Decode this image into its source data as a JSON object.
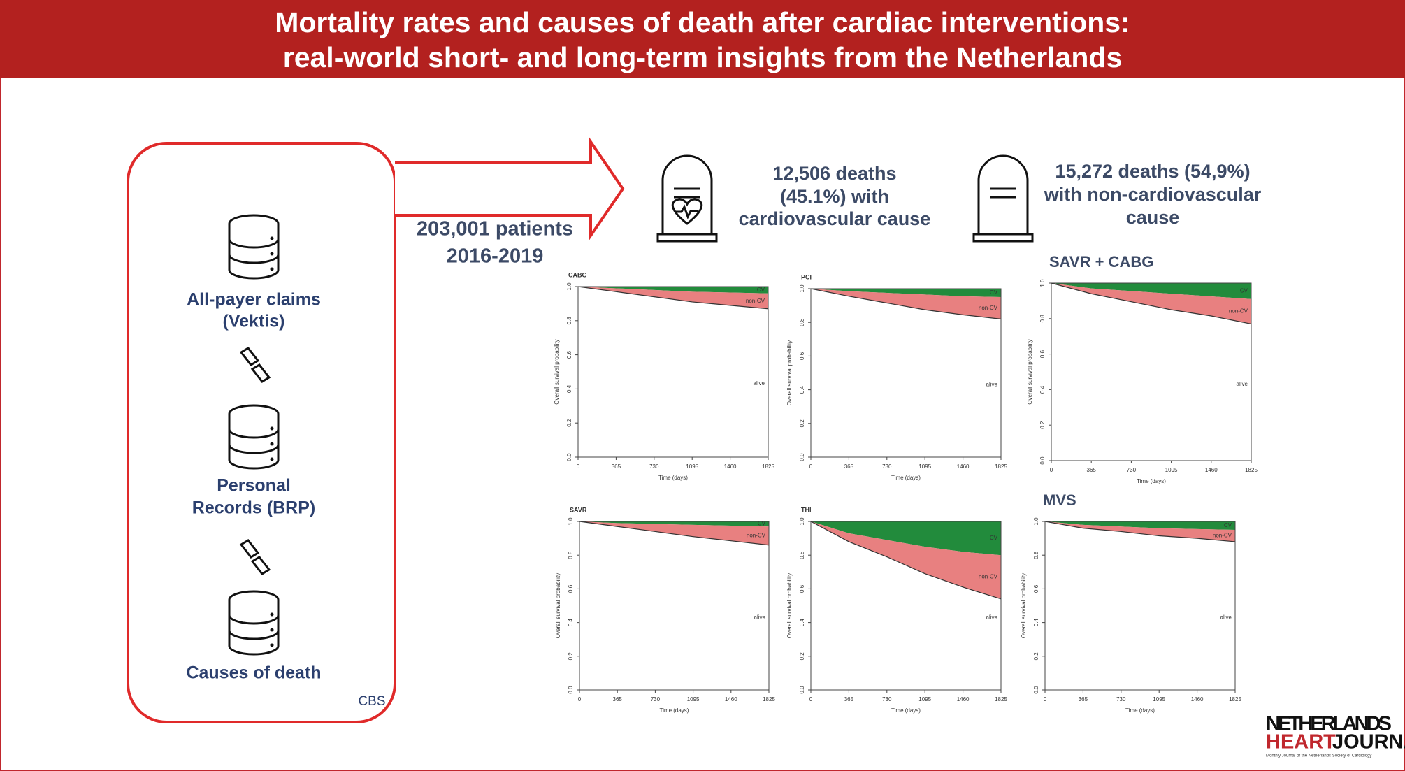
{
  "header": {
    "title_lines": [
      "Mortality rates and causes of death after cardiac interventions:",
      "real-world short- and long-term insights from the Netherlands"
    ]
  },
  "sources": [
    {
      "lines": [
        "All-payer claims",
        "(Vektis)"
      ]
    },
    {
      "lines": [
        "Personal",
        "Records (BRP)"
      ]
    },
    {
      "lines": [
        "Causes of death"
      ]
    }
  ],
  "source_note": "CBS",
  "cohort": [
    "203,001 patients",
    "2016-2019"
  ],
  "cv_deaths": [
    "12,506 deaths",
    "(45.1%) with",
    "cardiovascular cause"
  ],
  "noncv_deaths": [
    "15,272  deaths (54,9%)",
    "with non-cardiovascular",
    "cause"
  ],
  "charts": [
    {
      "type": "area",
      "title": "CABG",
      "x": [
        0,
        365,
        730,
        1095,
        1460,
        1825
      ],
      "series": [
        {
          "name": "CV",
          "color": "#228b3c",
          "values": [
            0,
            0.01,
            0.02,
            0.03,
            0.035,
            0.04
          ]
        },
        {
          "name": "non-CV",
          "color": "#e88080",
          "values": [
            0,
            0.02,
            0.04,
            0.06,
            0.075,
            0.09
          ]
        }
      ],
      "remainder_label": "alive",
      "xlabel": "Time (days)",
      "ylabel": "Overall survival probability",
      "xlim": [
        0,
        1825
      ],
      "ylim": [
        0,
        1
      ],
      "xticks": [
        0,
        365,
        730,
        1095,
        1460,
        1825
      ],
      "yticks": [
        {
          "value": 0,
          "label": "0.0"
        },
        0.2,
        0.4,
        0.6,
        0.8,
        {
          "value": 1,
          "label": "1.0"
        }
      ]
    },
    {
      "type": "area",
      "title": "PCI",
      "x": [
        0,
        365,
        730,
        1095,
        1460,
        1825
      ],
      "series": [
        {
          "name": "CV",
          "color": "#228b3c",
          "values": [
            0,
            0.015,
            0.025,
            0.035,
            0.045,
            0.05
          ]
        },
        {
          "name": "non-CV",
          "color": "#e88080",
          "values": [
            0,
            0.03,
            0.06,
            0.09,
            0.11,
            0.13
          ]
        }
      ],
      "remainder_label": "alive",
      "xlabel": "Time (days)",
      "ylabel": "Overall survival probability",
      "xlim": [
        0,
        1825
      ],
      "ylim": [
        0,
        1
      ],
      "xticks": [
        0,
        365,
        730,
        1095,
        1460,
        1825
      ],
      "yticks": [
        {
          "value": 0,
          "label": "0.0"
        },
        0.2,
        0.4,
        0.6,
        0.8,
        {
          "value": 1,
          "label": "1.0"
        }
      ]
    },
    {
      "type": "area",
      "title": "SAVR + CABG",
      "x": [
        0,
        365,
        730,
        1095,
        1460,
        1825
      ],
      "series": [
        {
          "name": "CV",
          "color": "#228b3c",
          "values": [
            0,
            0.03,
            0.045,
            0.06,
            0.075,
            0.09
          ]
        },
        {
          "name": "non-CV",
          "color": "#e88080",
          "values": [
            0,
            0.03,
            0.06,
            0.09,
            0.11,
            0.14
          ]
        }
      ],
      "remainder_label": "alive",
      "xlabel": "Time (days)",
      "ylabel": "Overall survival probability",
      "xlim": [
        0,
        1825
      ],
      "ylim": [
        0,
        1
      ],
      "xticks": [
        0,
        365,
        730,
        1095,
        1460,
        1825
      ],
      "yticks": [
        {
          "value": 0,
          "label": "0.0"
        },
        0.2,
        0.4,
        0.6,
        0.8,
        {
          "value": 1,
          "label": "1.0"
        }
      ]
    },
    {
      "type": "area",
      "title": "SAVR",
      "x": [
        0,
        365,
        730,
        1095,
        1460,
        1825
      ],
      "series": [
        {
          "name": "CV",
          "color": "#228b3c",
          "values": [
            0,
            0.01,
            0.015,
            0.02,
            0.025,
            0.03
          ]
        },
        {
          "name": "non-CV",
          "color": "#e88080",
          "values": [
            0,
            0.02,
            0.045,
            0.07,
            0.09,
            0.11
          ]
        }
      ],
      "remainder_label": "alive",
      "xlabel": "Time (days)",
      "ylabel": "Overall survival probability",
      "xlim": [
        0,
        1825
      ],
      "ylim": [
        0,
        1
      ],
      "xticks": [
        0,
        365,
        730,
        1095,
        1460,
        1825
      ],
      "yticks": [
        {
          "value": 0,
          "label": "0.0"
        },
        0.2,
        0.4,
        0.6,
        0.8,
        {
          "value": 1,
          "label": "1.0"
        }
      ]
    },
    {
      "type": "area",
      "title": "THI",
      "x": [
        0,
        365,
        730,
        1095,
        1460,
        1825
      ],
      "series": [
        {
          "name": "CV",
          "color": "#228b3c",
          "values": [
            0,
            0.07,
            0.11,
            0.15,
            0.18,
            0.2
          ]
        },
        {
          "name": "non-CV",
          "color": "#e88080",
          "values": [
            0,
            0.05,
            0.1,
            0.16,
            0.21,
            0.26
          ]
        }
      ],
      "remainder_label": "alive",
      "xlabel": "Time (days)",
      "ylabel": "Overall survival probability",
      "xlim": [
        0,
        1825
      ],
      "ylim": [
        0,
        1
      ],
      "xticks": [
        0,
        365,
        730,
        1095,
        1460,
        1825
      ],
      "yticks": [
        {
          "value": 0,
          "label": "0.0"
        },
        0.2,
        0.4,
        0.6,
        0.8,
        {
          "value": 1,
          "label": "1.0"
        }
      ]
    },
    {
      "type": "area",
      "title": "MVS",
      "x": [
        0,
        365,
        730,
        1095,
        1460,
        1825
      ],
      "series": [
        {
          "name": "CV",
          "color": "#228b3c",
          "values": [
            0,
            0.02,
            0.03,
            0.04,
            0.045,
            0.05
          ]
        },
        {
          "name": "non-CV",
          "color": "#e88080",
          "values": [
            0,
            0.02,
            0.03,
            0.045,
            0.055,
            0.07
          ]
        }
      ],
      "remainder_label": "alive",
      "xlabel": "Time (days)",
      "ylabel": "Overall survival probability",
      "xlim": [
        0,
        1825
      ],
      "ylim": [
        0,
        1
      ],
      "xticks": [
        0,
        365,
        730,
        1095,
        1460,
        1825
      ],
      "yticks": [
        {
          "value": 0,
          "label": "0.0"
        },
        0.2,
        0.4,
        0.6,
        0.8,
        {
          "value": 1,
          "label": "1.0"
        }
      ]
    }
  ],
  "logo": {
    "lines": [
      "NETHERLANDS",
      "HEART",
      "JOURNAL"
    ],
    "tagline": "Monthly Journal of the Netherlands Society of Cardiology"
  }
}
